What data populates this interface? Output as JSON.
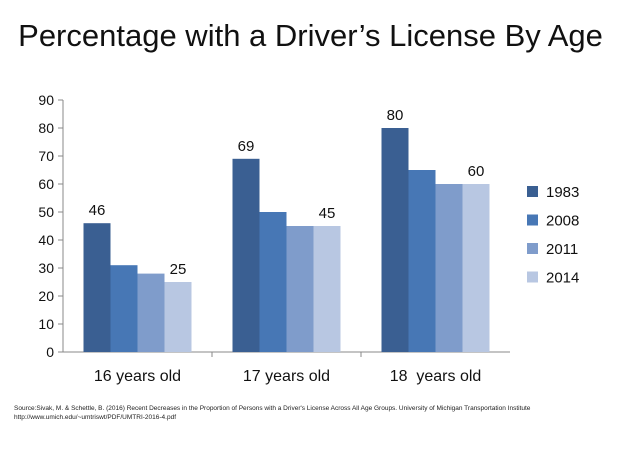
{
  "chart_data": {
    "type": "bar",
    "title": "Percentage with a Driver’s License By Age",
    "categories": [
      "16 years old",
      "17 years old",
      "18  years old"
    ],
    "series": [
      {
        "name": "1983",
        "color": "#3a5f92",
        "values": [
          46,
          69,
          80
        ]
      },
      {
        "name": "2008",
        "color": "#4777b5",
        "values": [
          31,
          50,
          65
        ]
      },
      {
        "name": "2011",
        "color": "#7f9ccb",
        "values": [
          28,
          45,
          60
        ]
      },
      {
        "name": "2014",
        "color": "#b8c7e2",
        "values": [
          25,
          45,
          60
        ]
      }
    ],
    "data_labels": [
      {
        "category": 0,
        "series": 0,
        "text": "46"
      },
      {
        "category": 0,
        "series": 3,
        "text": "25"
      },
      {
        "category": 1,
        "series": 0,
        "text": "69"
      },
      {
        "category": 1,
        "series": 3,
        "text": "45"
      },
      {
        "category": 2,
        "series": 0,
        "text": "80"
      },
      {
        "category": 2,
        "series": 3,
        "text": "60"
      }
    ],
    "yticks": [
      0,
      10,
      20,
      30,
      40,
      50,
      60,
      70,
      80,
      90
    ],
    "ylim": [
      0,
      90
    ],
    "xlabel": "",
    "ylabel": "",
    "grid": false,
    "legend": "right"
  },
  "source_text": "Source:Sivak, M. & Schettle, B. (2016) Recent Decreases in the Proportion of Persons with a Driver's License Across All  Age Groups. University of Michigan Transportation Institute",
  "source_url": "http://www.umich.edu/~umtriswt/PDF/UMTRI-2016-4.pdf"
}
